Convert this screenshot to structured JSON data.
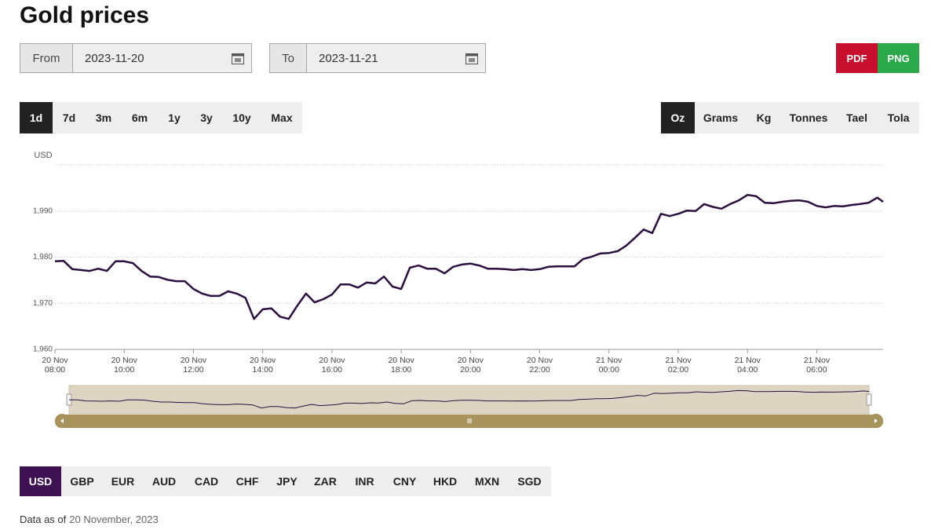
{
  "header": {
    "title": "Gold prices"
  },
  "date_range": {
    "from_label": "From",
    "from": "2023-11-20",
    "to_label": "To",
    "to": "2023-11-21"
  },
  "export_buttons": [
    {
      "label": "PDF",
      "color": "#c8102e"
    },
    {
      "label": "PNG",
      "color": "#2aa84a"
    }
  ],
  "period_buttons": [
    "1d",
    "7d",
    "3m",
    "6m",
    "1y",
    "3y",
    "10y",
    "Max"
  ],
  "active_period": 0,
  "unit_buttons": [
    "Oz",
    "Grams",
    "Kg",
    "Tonnes",
    "Tael",
    "Tola"
  ],
  "active_unit": 0,
  "currency_buttons": [
    "USD",
    "GBP",
    "EUR",
    "AUD",
    "CAD",
    "CHF",
    "JPY",
    "ZAR",
    "INR",
    "CNY",
    "HKD",
    "MXN",
    "SGD"
  ],
  "active_currency": 0,
  "footer": {
    "label": "Data as of",
    "date": "20 November, 2023"
  },
  "chart_data": {
    "type": "line",
    "y_label": "USD",
    "x": [
      "20 Nov 08:00",
      "20 Nov 08:15",
      "20 Nov 08:30",
      "20 Nov 08:45",
      "20 Nov 09:00",
      "20 Nov 09:15",
      "20 Nov 09:30",
      "20 Nov 09:45",
      "20 Nov 10:00",
      "20 Nov 10:15",
      "20 Nov 10:30",
      "20 Nov 10:45",
      "20 Nov 11:00",
      "20 Nov 11:15",
      "20 Nov 11:30",
      "20 Nov 11:45",
      "20 Nov 12:00",
      "20 Nov 12:15",
      "20 Nov 12:30",
      "20 Nov 12:45",
      "20 Nov 13:00",
      "20 Nov 13:15",
      "20 Nov 13:30",
      "20 Nov 13:45",
      "20 Nov 14:00",
      "20 Nov 14:15",
      "20 Nov 14:30",
      "20 Nov 14:45",
      "20 Nov 15:00",
      "20 Nov 15:15",
      "20 Nov 15:30",
      "20 Nov 15:45",
      "20 Nov 16:00",
      "20 Nov 16:15",
      "20 Nov 16:30",
      "20 Nov 16:45",
      "20 Nov 17:00",
      "20 Nov 17:15",
      "20 Nov 17:30",
      "20 Nov 17:45",
      "20 Nov 18:00",
      "20 Nov 18:15",
      "20 Nov 18:30",
      "20 Nov 18:45",
      "20 Nov 19:00",
      "20 Nov 19:15",
      "20 Nov 19:30",
      "20 Nov 19:45",
      "20 Nov 20:00",
      "20 Nov 20:15",
      "20 Nov 20:30",
      "20 Nov 20:45",
      "20 Nov 21:00",
      "20 Nov 21:15",
      "20 Nov 21:30",
      "20 Nov 21:45",
      "20 Nov 22:00",
      "20 Nov 22:15",
      "20 Nov 22:30",
      "20 Nov 22:45",
      "20 Nov 23:00",
      "20 Nov 23:15",
      "20 Nov 23:30",
      "20 Nov 23:45",
      "21 Nov 00:00",
      "21 Nov 00:15",
      "21 Nov 00:30",
      "21 Nov 00:45",
      "21 Nov 01:00",
      "21 Nov 01:15",
      "21 Nov 01:30",
      "21 Nov 01:45",
      "21 Nov 02:00",
      "21 Nov 02:15",
      "21 Nov 02:30",
      "21 Nov 02:45",
      "21 Nov 03:00",
      "21 Nov 03:15",
      "21 Nov 03:30",
      "21 Nov 03:45",
      "21 Nov 04:00",
      "21 Nov 04:15",
      "21 Nov 04:30",
      "21 Nov 04:45",
      "21 Nov 05:00",
      "21 Nov 05:15",
      "21 Nov 05:30",
      "21 Nov 05:45",
      "21 Nov 06:00",
      "21 Nov 06:15",
      "21 Nov 06:30",
      "21 Nov 06:45",
      "21 Nov 07:00",
      "21 Nov 07:15",
      "21 Nov 07:30",
      "21 Nov 07:45",
      "21 Nov 07:55"
    ],
    "series": [
      {
        "color": "#2a0f3f",
        "values": [
          1979.1,
          1979.2,
          1977.4,
          1977.2,
          1977.0,
          1977.5,
          1977.0,
          1979.1,
          1979.1,
          1978.7,
          1977.0,
          1975.8,
          1975.7,
          1975.1,
          1974.8,
          1974.8,
          1973.1,
          1972.1,
          1971.6,
          1971.6,
          1972.6,
          1972.1,
          1971.2,
          1966.6,
          1968.7,
          1968.9,
          1967.1,
          1966.6,
          1969.5,
          1972.1,
          1970.2,
          1970.9,
          1971.9,
          1974.1,
          1974.1,
          1973.4,
          1974.5,
          1974.3,
          1975.8,
          1973.6,
          1973.1,
          1977.7,
          1978.2,
          1977.5,
          1977.5,
          1976.5,
          1977.9,
          1978.4,
          1978.6,
          1978.2,
          1977.5,
          1977.5,
          1977.4,
          1977.2,
          1977.4,
          1977.2,
          1977.4,
          1977.9,
          1978.0,
          1978.0,
          1978.0,
          1979.6,
          1980.1,
          1980.8,
          1980.9,
          1981.3,
          1982.5,
          1984.2,
          1986.0,
          1985.2,
          1989.4,
          1988.9,
          1989.4,
          1990.1,
          1990.0,
          1991.5,
          1990.9,
          1990.5,
          1991.5,
          1992.3,
          1993.5,
          1993.2,
          1991.8,
          1991.7,
          1992.0,
          1992.2,
          1992.3,
          1992.0,
          1991.1,
          1990.8,
          1991.1,
          1991.0,
          1991.3,
          1991.5,
          1991.8,
          1992.9,
          1992.0
        ]
      }
    ],
    "xlim": [
      "20 Nov 08:00",
      "21 Nov 07:55"
    ],
    "xticks": [
      "20 Nov 08:00",
      "20 Nov 10:00",
      "20 Nov 12:00",
      "20 Nov 14:00",
      "20 Nov 16:00",
      "20 Nov 18:00",
      "20 Nov 20:00",
      "20 Nov 22:00",
      "21 Nov 00:00",
      "21 Nov 02:00",
      "21 Nov 04:00",
      "21 Nov 06:00"
    ],
    "ylim": [
      1960,
      2000
    ],
    "yticks": [
      {
        "value": 1960,
        "label": "1,960"
      },
      {
        "value": 1970,
        "label": "1,970"
      },
      {
        "value": 1980,
        "label": "1,980"
      },
      {
        "value": 1990,
        "label": "1,990"
      }
    ],
    "grid": true
  }
}
